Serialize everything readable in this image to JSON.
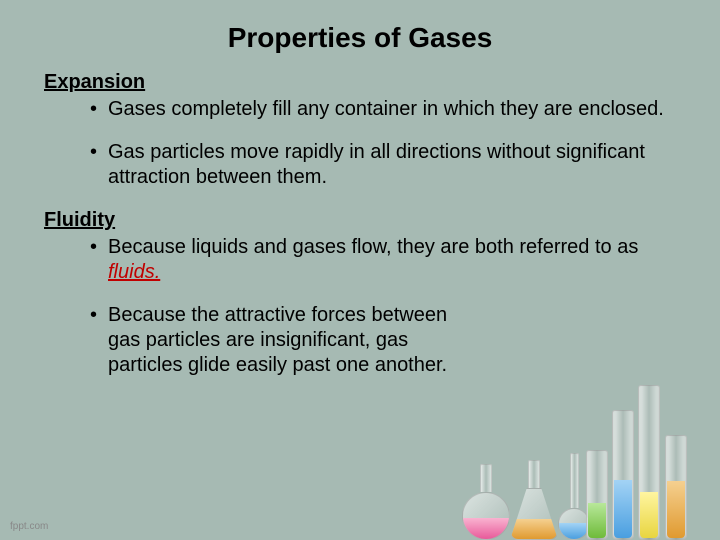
{
  "title": "Properties of Gases",
  "sections": [
    {
      "label": "Expansion",
      "bullets": [
        {
          "text": "Gases completely fill any container in which they are enclosed.",
          "narrow": false
        },
        {
          "text": "Gas particles move rapidly in all directions without significant attraction between them.",
          "narrow": false
        }
      ]
    },
    {
      "label": "Fluidity",
      "bullets": [
        {
          "html": "Because liquids and gases flow, they are both referred to as <span class=\"fluid\">fluids.</span>",
          "narrow": false
        },
        {
          "text": "Because the attractive forces between gas particles are insignificant, gas particles glide easily past one another.",
          "narrow": true
        }
      ]
    }
  ],
  "footer": "fppt.com",
  "colors": {
    "background": "#a6bab3",
    "accent": "#c00000"
  }
}
